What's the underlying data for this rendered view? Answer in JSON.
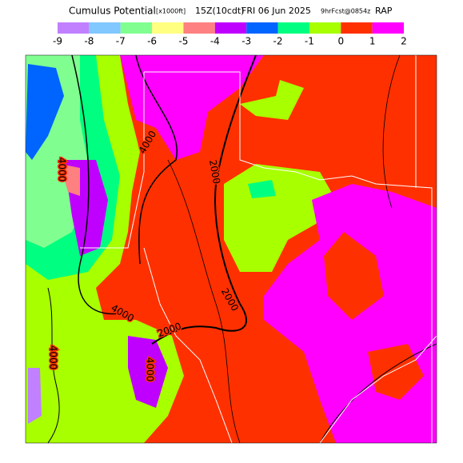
{
  "header": {
    "title": "Cumulus Potential",
    "units": "[x1000ft]",
    "valid": "15Z(10cdt)",
    "date": "FRI 06 Jun 2025",
    "forecast": "9hrFcst@0854z",
    "model": "RAP"
  },
  "legend": {
    "colors": [
      "#c080ff",
      "#80c8ff",
      "#80ff90",
      "#ffff80",
      "#ff8080",
      "#c000ff",
      "#0064ff",
      "#00ff80",
      "#a8ff00",
      "#ff3000",
      "#ff00ff"
    ],
    "labels": [
      -9,
      -8,
      -7,
      -6,
      -5,
      -4,
      -3,
      -2,
      -1,
      0,
      1,
      2
    ]
  },
  "map": {
    "contour_labels": [
      "4000",
      "4000",
      "2000",
      "2000",
      "4000",
      "2000",
      "4000",
      "4000"
    ]
  }
}
